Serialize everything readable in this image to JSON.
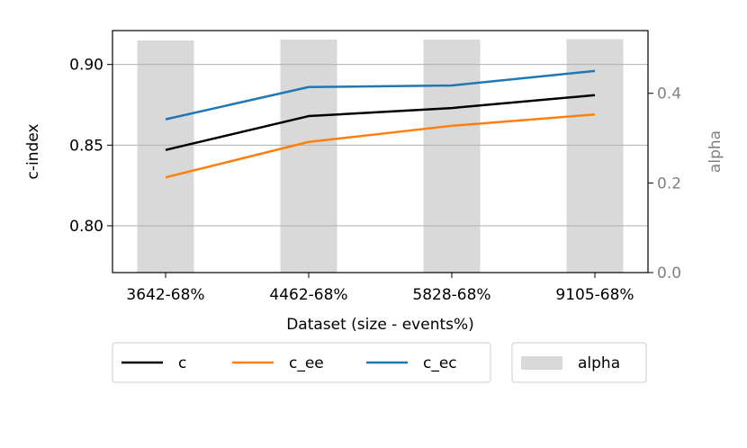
{
  "chart_data": {
    "type": "line",
    "categories": [
      "3642-68%",
      "4462-68%",
      "5828-68%",
      "9105-68%"
    ],
    "xlabel": "Dataset (size - events%)",
    "ylabel": "c-index",
    "ylim": [
      0.771,
      0.921
    ],
    "yticks": [
      0.8,
      0.85,
      0.9
    ],
    "ytick_labels": [
      "0.80",
      "0.85",
      "0.90"
    ],
    "grid": "horizontal, left axis",
    "series": [
      {
        "name": "c",
        "values": [
          0.847,
          0.868,
          0.873,
          0.881
        ],
        "color": "#000000"
      },
      {
        "name": "c_ee",
        "values": [
          0.83,
          0.852,
          0.862,
          0.869
        ],
        "color": "#ff7f0e"
      },
      {
        "name": "c_ec",
        "values": [
          0.866,
          0.886,
          0.887,
          0.896
        ],
        "color": "#1f77b4"
      }
    ],
    "secondary_axis": {
      "ylabel": "alpha",
      "ylim": [
        0.0,
        0.54
      ],
      "yticks": [
        0.0,
        0.2,
        0.4
      ],
      "ytick_labels": [
        "0.0",
        "0.2",
        "0.4"
      ],
      "color": "#808080"
    },
    "bars": {
      "name": "alpha",
      "type": "bar",
      "values": [
        0.518,
        0.52,
        0.52,
        0.521
      ],
      "color": "#d9d9d9"
    },
    "legend": {
      "placement": "below plot",
      "entries": [
        "c",
        "c_ee",
        "c_ec",
        "alpha"
      ]
    }
  }
}
